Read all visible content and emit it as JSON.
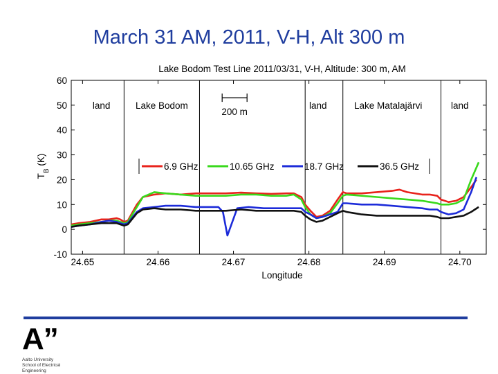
{
  "slide": {
    "title": "March 31 AM, 2011, V-H, Alt 300 m"
  },
  "logo": {
    "mark": "A”",
    "lines": [
      "Aalto University",
      "School of Electrical",
      "Engineering"
    ]
  },
  "chart_data": {
    "type": "line",
    "title": "Lake Bodom Test Line 2011/03/31, V-H, Altitude: 300 m, AM",
    "xlabel": "Longitude",
    "ylabel": "T",
    "ylabel_sub": "B",
    "ylabel_unit": " (K)",
    "xlim": [
      24.6485,
      24.7035
    ],
    "ylim": [
      -10,
      60
    ],
    "xticks": [
      24.65,
      24.66,
      24.67,
      24.68,
      24.69,
      24.7
    ],
    "xtick_labels": [
      "24.65",
      "24.66",
      "24.67",
      "24.68",
      "24.69",
      "24.70"
    ],
    "yticks": [
      60,
      50,
      40,
      30,
      20,
      10,
      0,
      -10
    ],
    "ytick_labels": [
      "60",
      "50",
      "40",
      "30",
      "20",
      "10",
      "0",
      "-10"
    ],
    "vlines": [
      24.6555,
      24.6655,
      24.6795,
      24.6845,
      24.6975
    ],
    "region_labels": [
      {
        "text": "land",
        "x": 24.6525,
        "y": 50
      },
      {
        "text": "Lake Bodom",
        "x": 24.6605,
        "y": 50
      },
      {
        "text": "land",
        "x": 24.6812,
        "y": 50
      },
      {
        "text": "Lake Matalajärvi",
        "x": 24.6905,
        "y": 50
      },
      {
        "text": "land",
        "x": 24.7,
        "y": 50
      }
    ],
    "scale_bar": {
      "label": "200 m",
      "x1": 24.6685,
      "x2": 24.6718,
      "y": 53
    },
    "series": [
      {
        "name": "6.9 GHz",
        "color": "#e8231c",
        "x": [
          24.6485,
          24.6495,
          24.651,
          24.6525,
          24.6535,
          24.6545,
          24.655,
          24.6555,
          24.656,
          24.6572,
          24.658,
          24.6595,
          24.661,
          24.663,
          24.665,
          24.667,
          24.669,
          24.671,
          24.673,
          24.675,
          24.677,
          24.678,
          24.679,
          24.6795,
          24.6802,
          24.681,
          24.6818,
          24.6828,
          24.6838,
          24.6845,
          24.685,
          24.687,
          24.689,
          24.691,
          24.692,
          24.693,
          24.695,
          24.696,
          24.697,
          24.6975,
          24.6985,
          24.6995,
          24.7005,
          24.7015,
          24.7022
        ],
        "y": [
          2,
          2.5,
          3,
          4,
          4,
          4.5,
          4,
          3,
          3.5,
          10,
          13,
          14,
          14.5,
          14,
          14.5,
          14.5,
          14.5,
          14.8,
          14.5,
          14.3,
          14.5,
          14.5,
          13,
          10,
          7.5,
          5,
          5.5,
          7.5,
          12,
          15,
          14.5,
          14.5,
          15,
          15.5,
          16,
          15,
          14,
          14,
          13.5,
          12,
          11,
          11.5,
          13,
          17,
          20
        ]
      },
      {
        "name": "10.65 GHz",
        "color": "#39d91c",
        "x": [
          24.6485,
          24.6495,
          24.651,
          24.6525,
          24.6535,
          24.6545,
          24.655,
          24.6555,
          24.656,
          24.6572,
          24.658,
          24.6595,
          24.661,
          24.663,
          24.665,
          24.667,
          24.669,
          24.671,
          24.673,
          24.675,
          24.677,
          24.678,
          24.679,
          24.6795,
          24.6802,
          24.681,
          24.6818,
          24.6828,
          24.6838,
          24.6845,
          24.685,
          24.687,
          24.689,
          24.691,
          24.693,
          24.695,
          24.696,
          24.697,
          24.6975,
          24.6985,
          24.6995,
          24.7005,
          24.7015,
          24.7025
        ],
        "y": [
          1.5,
          2,
          2.5,
          3,
          3.5,
          3.5,
          3,
          2.5,
          3,
          9,
          13,
          15,
          14.5,
          14,
          13.5,
          13.5,
          13.5,
          14,
          14,
          13.5,
          13.5,
          14,
          12,
          9,
          6,
          4.5,
          5,
          6.5,
          10.5,
          13.5,
          14,
          13.5,
          13,
          12.5,
          12,
          11.5,
          11,
          10.5,
          10,
          10,
          10.5,
          12,
          20,
          27
        ]
      },
      {
        "name": "18.7 GHz",
        "color": "#1c2bd9",
        "x": [
          24.6485,
          24.6495,
          24.651,
          24.6525,
          24.6535,
          24.6545,
          24.655,
          24.6555,
          24.656,
          24.6572,
          24.658,
          24.6595,
          24.661,
          24.663,
          24.665,
          24.667,
          24.668,
          24.6686,
          24.6692,
          24.6705,
          24.672,
          24.674,
          24.676,
          24.678,
          24.679,
          24.6795,
          24.6802,
          24.681,
          24.6818,
          24.6828,
          24.6838,
          24.6845,
          24.685,
          24.687,
          24.689,
          24.691,
          24.693,
          24.695,
          24.696,
          24.697,
          24.6975,
          24.6985,
          24.6995,
          24.7005,
          24.7015,
          24.7022
        ],
        "y": [
          1,
          1.5,
          2,
          3,
          3.5,
          3,
          2.5,
          2,
          2.5,
          7,
          8.5,
          9,
          9.5,
          9.5,
          9,
          9,
          9,
          7,
          -2.5,
          8.5,
          9,
          8.5,
          8.5,
          8.5,
          8.5,
          7,
          6,
          4.5,
          5,
          6,
          7,
          10.5,
          10.5,
          10,
          10,
          9.5,
          9,
          8.5,
          8,
          8,
          7,
          6,
          6.5,
          8,
          15,
          21
        ]
      },
      {
        "name": "36.5 GHz",
        "color": "#111111",
        "x": [
          24.6485,
          24.6495,
          24.651,
          24.6525,
          24.6535,
          24.6545,
          24.655,
          24.6555,
          24.656,
          24.6572,
          24.658,
          24.6595,
          24.661,
          24.663,
          24.665,
          24.667,
          24.669,
          24.671,
          24.673,
          24.675,
          24.677,
          24.678,
          24.679,
          24.6795,
          24.6802,
          24.681,
          24.6818,
          24.6828,
          24.6838,
          24.6845,
          24.685,
          24.687,
          24.689,
          24.691,
          24.693,
          24.695,
          24.696,
          24.697,
          24.6975,
          24.6985,
          24.6995,
          24.7005,
          24.7015,
          24.7025
        ],
        "y": [
          1,
          1.5,
          2,
          2.5,
          2.5,
          2.5,
          2,
          1.5,
          2,
          6.5,
          8,
          8.5,
          8,
          8,
          7.5,
          7.5,
          7.5,
          8,
          7.5,
          7.5,
          7.5,
          7.5,
          7,
          5.5,
          4,
          3,
          3.5,
          5,
          6.5,
          7.5,
          7,
          6,
          5.5,
          5.5,
          5.5,
          5.5,
          5.5,
          5,
          4.5,
          4.5,
          5,
          5.5,
          7,
          9
        ]
      }
    ]
  }
}
